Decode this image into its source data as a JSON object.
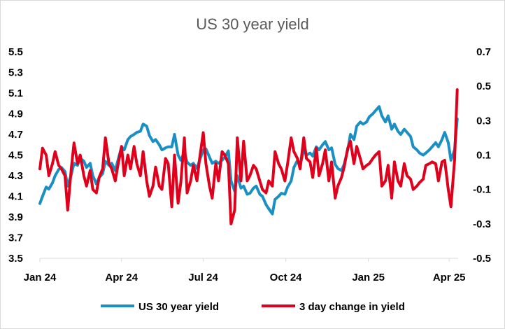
{
  "chart_data": {
    "type": "line",
    "title": "US 30 year yield",
    "x_tick_labels": [
      "Jan 24",
      "Apr 24",
      "Jul 24",
      "Oct 24",
      "Jan 25",
      "Apr 25"
    ],
    "left_axis": {
      "ylim": [
        3.5,
        5.5
      ],
      "ticks": [
        "5.5",
        "5.3",
        "5.1",
        "4.9",
        "4.7",
        "4.5",
        "4.3",
        "4.1",
        "3.9",
        "3.7",
        "3.5"
      ]
    },
    "right_axis": {
      "ylim": [
        -0.5,
        0.7
      ],
      "ticks": [
        "0.7",
        "0.5",
        "0.3",
        "0.1",
        "-0.1",
        "-0.3",
        "-0.5"
      ]
    },
    "legend_position": "bottom",
    "grid": false,
    "series": [
      {
        "name": "US 30 year yield",
        "axis": "left",
        "color": "#1a8fc4",
        "points": [
          [
            "2024-01-01",
            4.03
          ],
          [
            "2024-01-04",
            4.1
          ],
          [
            "2024-01-08",
            4.19
          ],
          [
            "2024-01-11",
            4.17
          ],
          [
            "2024-01-15",
            4.23
          ],
          [
            "2024-01-18",
            4.3
          ],
          [
            "2024-01-22",
            4.36
          ],
          [
            "2024-01-25",
            4.38
          ],
          [
            "2024-01-29",
            4.34
          ],
          [
            "2024-02-01",
            4.2
          ],
          [
            "2024-02-05",
            4.31
          ],
          [
            "2024-02-08",
            4.42
          ],
          [
            "2024-02-12",
            4.4
          ],
          [
            "2024-02-15",
            4.47
          ],
          [
            "2024-02-19",
            4.44
          ],
          [
            "2024-02-22",
            4.38
          ],
          [
            "2024-02-26",
            4.42
          ],
          [
            "2024-02-29",
            4.3
          ],
          [
            "2024-03-04",
            4.22
          ],
          [
            "2024-03-07",
            4.28
          ],
          [
            "2024-03-11",
            4.32
          ],
          [
            "2024-03-14",
            4.44
          ],
          [
            "2024-03-18",
            4.4
          ],
          [
            "2024-03-21",
            4.42
          ],
          [
            "2024-03-25",
            4.35
          ],
          [
            "2024-03-28",
            4.45
          ],
          [
            "2024-04-01",
            4.58
          ],
          [
            "2024-04-04",
            4.55
          ],
          [
            "2024-04-08",
            4.65
          ],
          [
            "2024-04-11",
            4.68
          ],
          [
            "2024-04-15",
            4.7
          ],
          [
            "2024-04-18",
            4.72
          ],
          [
            "2024-04-22",
            4.73
          ],
          [
            "2024-04-25",
            4.8
          ],
          [
            "2024-04-29",
            4.78
          ],
          [
            "2024-05-02",
            4.69
          ],
          [
            "2024-05-06",
            4.63
          ],
          [
            "2024-05-09",
            4.65
          ],
          [
            "2024-05-13",
            4.6
          ],
          [
            "2024-05-16",
            4.55
          ],
          [
            "2024-05-20",
            4.57
          ],
          [
            "2024-05-23",
            4.58
          ],
          [
            "2024-05-27",
            4.58
          ],
          [
            "2024-05-30",
            4.7
          ],
          [
            "2024-06-03",
            4.5
          ],
          [
            "2024-06-06",
            4.45
          ],
          [
            "2024-06-10",
            4.53
          ],
          [
            "2024-06-13",
            4.43
          ],
          [
            "2024-06-17",
            4.4
          ],
          [
            "2024-06-20",
            4.42
          ],
          [
            "2024-06-24",
            4.37
          ],
          [
            "2024-06-27",
            4.45
          ],
          [
            "2024-07-01",
            4.55
          ],
          [
            "2024-07-04",
            4.56
          ],
          [
            "2024-07-08",
            4.48
          ],
          [
            "2024-07-11",
            4.42
          ],
          [
            "2024-07-15",
            4.44
          ],
          [
            "2024-07-18",
            4.42
          ],
          [
            "2024-07-22",
            4.45
          ],
          [
            "2024-07-25",
            4.48
          ],
          [
            "2024-07-29",
            4.54
          ],
          [
            "2024-08-01",
            4.25
          ],
          [
            "2024-08-05",
            4.15
          ],
          [
            "2024-08-08",
            4.3
          ],
          [
            "2024-08-12",
            4.18
          ],
          [
            "2024-08-15",
            4.2
          ],
          [
            "2024-08-19",
            4.12
          ],
          [
            "2024-08-22",
            4.13
          ],
          [
            "2024-08-26",
            4.18
          ],
          [
            "2024-08-29",
            4.2
          ],
          [
            "2024-09-02",
            4.12
          ],
          [
            "2024-09-05",
            4.1
          ],
          [
            "2024-09-09",
            4.02
          ],
          [
            "2024-09-12",
            3.98
          ],
          [
            "2024-09-16",
            3.93
          ],
          [
            "2024-09-19",
            4.07
          ],
          [
            "2024-09-23",
            4.1
          ],
          [
            "2024-09-26",
            4.13
          ],
          [
            "2024-09-30",
            4.12
          ],
          [
            "2024-10-03",
            4.19
          ],
          [
            "2024-10-07",
            4.25
          ],
          [
            "2024-10-10",
            4.38
          ],
          [
            "2024-10-14",
            4.45
          ],
          [
            "2024-10-17",
            4.4
          ],
          [
            "2024-10-21",
            4.55
          ],
          [
            "2024-10-24",
            4.5
          ],
          [
            "2024-10-28",
            4.52
          ],
          [
            "2024-10-31",
            4.49
          ],
          [
            "2024-11-04",
            4.58
          ],
          [
            "2024-11-07",
            4.55
          ],
          [
            "2024-11-11",
            4.6
          ],
          [
            "2024-11-14",
            4.63
          ],
          [
            "2024-11-18",
            4.55
          ],
          [
            "2024-11-21",
            4.57
          ],
          [
            "2024-11-25",
            4.41
          ],
          [
            "2024-11-28",
            4.37
          ],
          [
            "2024-12-02",
            4.35
          ],
          [
            "2024-12-05",
            4.41
          ],
          [
            "2024-12-09",
            4.55
          ],
          [
            "2024-12-12",
            4.7
          ],
          [
            "2024-12-16",
            4.65
          ],
          [
            "2024-12-19",
            4.78
          ],
          [
            "2024-12-23",
            4.82
          ],
          [
            "2024-12-26",
            4.8
          ],
          [
            "2024-12-30",
            4.82
          ],
          [
            "2025-01-02",
            4.87
          ],
          [
            "2025-01-06",
            4.9
          ],
          [
            "2025-01-09",
            4.93
          ],
          [
            "2025-01-13",
            4.97
          ],
          [
            "2025-01-16",
            4.88
          ],
          [
            "2025-01-20",
            4.82
          ],
          [
            "2025-01-23",
            4.88
          ],
          [
            "2025-01-27",
            4.75
          ],
          [
            "2025-01-30",
            4.8
          ],
          [
            "2025-02-03",
            4.73
          ],
          [
            "2025-02-06",
            4.7
          ],
          [
            "2025-02-10",
            4.75
          ],
          [
            "2025-02-13",
            4.72
          ],
          [
            "2025-02-17",
            4.68
          ],
          [
            "2025-02-20",
            4.58
          ],
          [
            "2025-02-24",
            4.55
          ],
          [
            "2025-02-27",
            4.52
          ],
          [
            "2025-03-03",
            4.5
          ],
          [
            "2025-03-06",
            4.52
          ],
          [
            "2025-03-10",
            4.55
          ],
          [
            "2025-03-13",
            4.58
          ],
          [
            "2025-03-17",
            4.62
          ],
          [
            "2025-03-20",
            4.58
          ],
          [
            "2025-03-24",
            4.65
          ],
          [
            "2025-03-27",
            4.72
          ],
          [
            "2025-03-31",
            4.62
          ],
          [
            "2025-04-03",
            4.45
          ],
          [
            "2025-04-07",
            4.55
          ],
          [
            "2025-04-10",
            4.85
          ]
        ]
      },
      {
        "name": "3 day change in yield",
        "axis": "right",
        "color": "#e0001b",
        "points": [
          [
            "2024-01-01",
            0.02
          ],
          [
            "2024-01-04",
            0.14
          ],
          [
            "2024-01-08",
            0.1
          ],
          [
            "2024-01-11",
            -0.02
          ],
          [
            "2024-01-15",
            0.05
          ],
          [
            "2024-01-18",
            0.12
          ],
          [
            "2024-01-22",
            0.04
          ],
          [
            "2024-01-25",
            0.02
          ],
          [
            "2024-01-29",
            -0.02
          ],
          [
            "2024-02-01",
            -0.22
          ],
          [
            "2024-02-05",
            0.02
          ],
          [
            "2024-02-08",
            0.17
          ],
          [
            "2024-02-12",
            0.05
          ],
          [
            "2024-02-15",
            0.1
          ],
          [
            "2024-02-19",
            -0.02
          ],
          [
            "2024-02-22",
            -0.08
          ],
          [
            "2024-02-26",
            0.01
          ],
          [
            "2024-02-29",
            -0.1
          ],
          [
            "2024-03-04",
            -0.12
          ],
          [
            "2024-03-07",
            -0.03
          ],
          [
            "2024-03-11",
            0.02
          ],
          [
            "2024-03-14",
            0.2
          ],
          [
            "2024-03-18",
            0.05
          ],
          [
            "2024-03-21",
            0.02
          ],
          [
            "2024-03-25",
            -0.05
          ],
          [
            "2024-03-28",
            0.04
          ],
          [
            "2024-04-01",
            0.15
          ],
          [
            "2024-04-04",
            -0.02
          ],
          [
            "2024-04-08",
            0.1
          ],
          [
            "2024-04-11",
            0.02
          ],
          [
            "2024-04-15",
            0.15
          ],
          [
            "2024-04-18",
            0.05
          ],
          [
            "2024-04-22",
            -0.02
          ],
          [
            "2024-04-25",
            0.12
          ],
          [
            "2024-04-29",
            -0.05
          ],
          [
            "2024-05-02",
            -0.14
          ],
          [
            "2024-05-06",
            -0.08
          ],
          [
            "2024-05-09",
            0.03
          ],
          [
            "2024-05-13",
            -0.08
          ],
          [
            "2024-05-16",
            -0.1
          ],
          [
            "2024-05-20",
            0.08
          ],
          [
            "2024-05-23",
            0.05
          ],
          [
            "2024-05-27",
            -0.2
          ],
          [
            "2024-05-30",
            0.1
          ],
          [
            "2024-06-03",
            -0.18
          ],
          [
            "2024-06-06",
            -0.06
          ],
          [
            "2024-06-10",
            0.2
          ],
          [
            "2024-06-13",
            -0.12
          ],
          [
            "2024-06-17",
            -0.05
          ],
          [
            "2024-06-20",
            0.04
          ],
          [
            "2024-06-24",
            -0.05
          ],
          [
            "2024-06-27",
            0.08
          ],
          [
            "2024-07-01",
            0.23
          ],
          [
            "2024-07-04",
            0.05
          ],
          [
            "2024-07-08",
            -0.08
          ],
          [
            "2024-07-11",
            -0.15
          ],
          [
            "2024-07-15",
            0.05
          ],
          [
            "2024-07-18",
            -0.05
          ],
          [
            "2024-07-22",
            0.12
          ],
          [
            "2024-07-25",
            0.1
          ],
          [
            "2024-07-29",
            0.05
          ],
          [
            "2024-08-01",
            -0.3
          ],
          [
            "2024-08-05",
            -0.22
          ],
          [
            "2024-08-08",
            0.2
          ],
          [
            "2024-08-12",
            -0.05
          ],
          [
            "2024-08-15",
            0.18
          ],
          [
            "2024-08-19",
            -0.05
          ],
          [
            "2024-08-22",
            -0.02
          ],
          [
            "2024-08-26",
            0.04
          ],
          [
            "2024-08-29",
            0.02
          ],
          [
            "2024-09-02",
            -0.05
          ],
          [
            "2024-09-05",
            -0.1
          ],
          [
            "2024-09-09",
            -0.12
          ],
          [
            "2024-09-12",
            -0.05
          ],
          [
            "2024-09-16",
            -0.08
          ],
          [
            "2024-09-19",
            0.12
          ],
          [
            "2024-09-23",
            0.05
          ],
          [
            "2024-09-26",
            0.02
          ],
          [
            "2024-09-30",
            -0.05
          ],
          [
            "2024-10-03",
            0.05
          ],
          [
            "2024-10-07",
            0.2
          ],
          [
            "2024-10-10",
            0.12
          ],
          [
            "2024-10-14",
            0.08
          ],
          [
            "2024-10-17",
            0.02
          ],
          [
            "2024-10-21",
            0.2
          ],
          [
            "2024-10-24",
            0.08
          ],
          [
            "2024-10-28",
            0.06
          ],
          [
            "2024-10-31",
            -0.03
          ],
          [
            "2024-11-04",
            0.14
          ],
          [
            "2024-11-07",
            -0.02
          ],
          [
            "2024-11-11",
            0.05
          ],
          [
            "2024-11-14",
            0.13
          ],
          [
            "2024-11-18",
            -0.05
          ],
          [
            "2024-11-21",
            0.06
          ],
          [
            "2024-11-25",
            -0.15
          ],
          [
            "2024-11-28",
            -0.08
          ],
          [
            "2024-12-02",
            -0.03
          ],
          [
            "2024-12-05",
            0.03
          ],
          [
            "2024-12-09",
            0.14
          ],
          [
            "2024-12-12",
            0.18
          ],
          [
            "2024-12-16",
            0.05
          ],
          [
            "2024-12-19",
            0.15
          ],
          [
            "2024-12-23",
            0.08
          ],
          [
            "2024-12-26",
            0.02
          ],
          [
            "2024-12-30",
            0.04
          ],
          [
            "2025-01-02",
            0.05
          ],
          [
            "2025-01-06",
            0.08
          ],
          [
            "2025-01-09",
            0.1
          ],
          [
            "2025-01-13",
            0.12
          ],
          [
            "2025-01-16",
            -0.08
          ],
          [
            "2025-01-20",
            -0.05
          ],
          [
            "2025-01-23",
            0.04
          ],
          [
            "2025-01-27",
            -0.15
          ],
          [
            "2025-01-30",
            0.06
          ],
          [
            "2025-02-03",
            -0.05
          ],
          [
            "2025-02-06",
            -0.08
          ],
          [
            "2025-02-10",
            0.05
          ],
          [
            "2025-02-13",
            -0.02
          ],
          [
            "2025-02-17",
            -0.04
          ],
          [
            "2025-02-20",
            -0.1
          ],
          [
            "2025-02-24",
            -0.08
          ],
          [
            "2025-02-27",
            -0.06
          ],
          [
            "2025-03-03",
            -0.04
          ],
          [
            "2025-03-06",
            0.04
          ],
          [
            "2025-03-10",
            0.05
          ],
          [
            "2025-03-13",
            0.06
          ],
          [
            "2025-03-17",
            0.05
          ],
          [
            "2025-03-20",
            -0.05
          ],
          [
            "2025-03-24",
            0.06
          ],
          [
            "2025-03-27",
            0.07
          ],
          [
            "2025-03-31",
            -0.1
          ],
          [
            "2025-04-03",
            -0.2
          ],
          [
            "2025-04-07",
            0.07
          ],
          [
            "2025-04-10",
            0.48
          ]
        ]
      }
    ]
  }
}
